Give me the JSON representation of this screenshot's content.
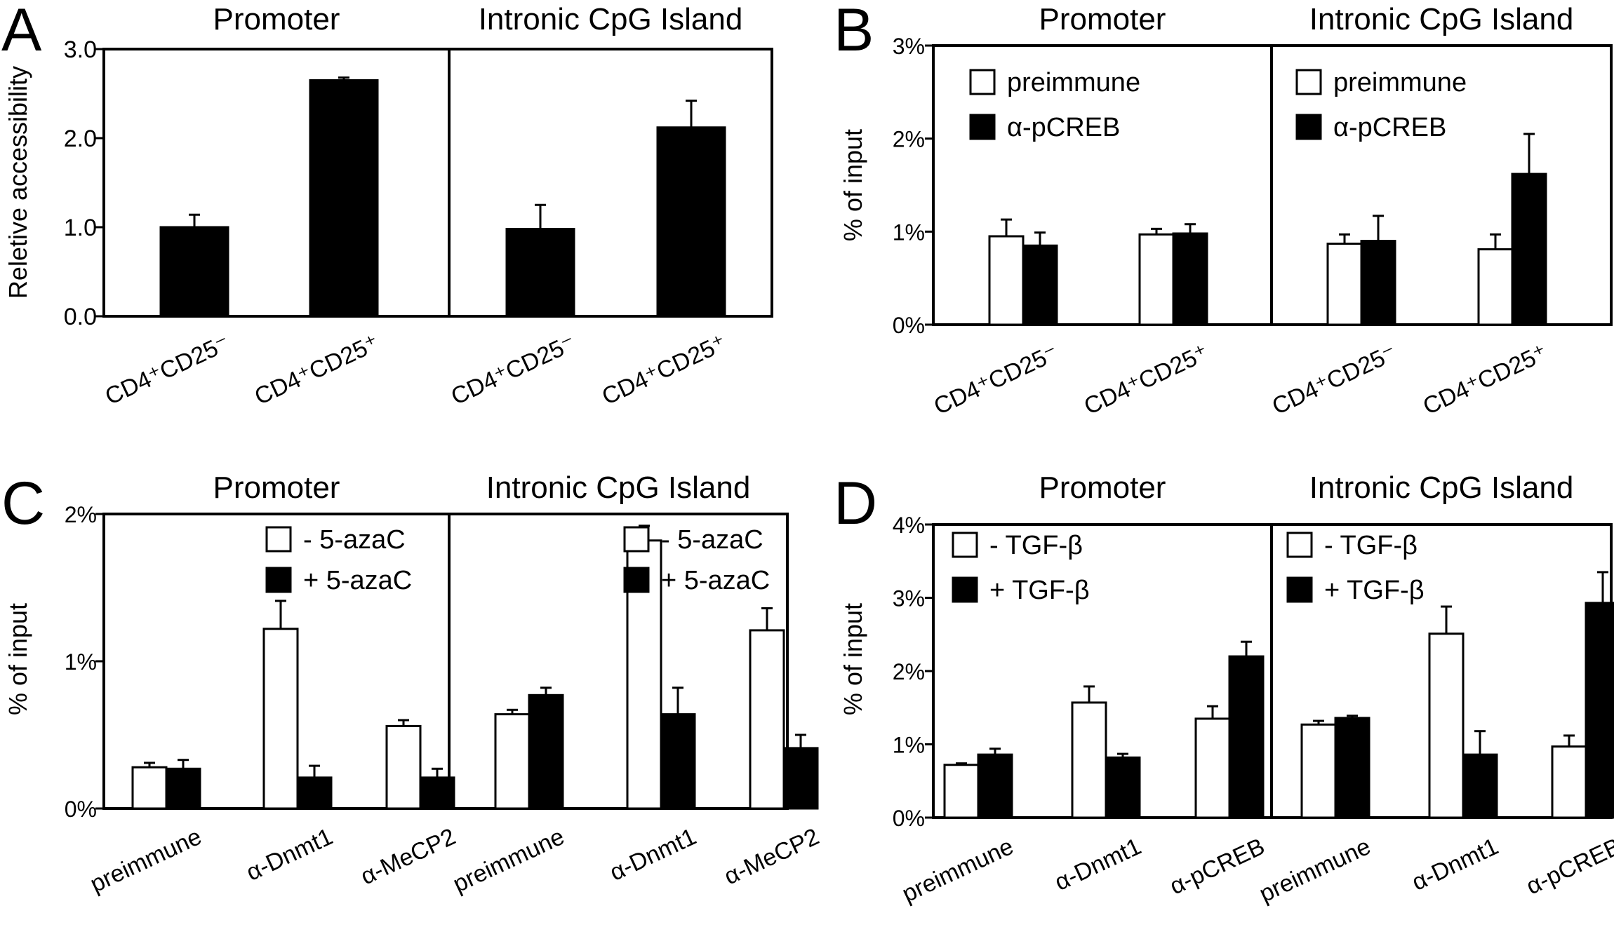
{
  "chart_data": [
    {
      "panel_letter": "A",
      "type": "bar",
      "ylabel": "Reletive accessibility",
      "ylim": [
        0,
        3
      ],
      "yticks": [
        "0.0",
        "1.0",
        "2.0",
        "3.0"
      ],
      "facets": [
        {
          "title": "Promoter",
          "categories": [
            "CD4⁺CD25⁻",
            "CD4⁺CD25⁺"
          ],
          "series": [
            {
              "fill": "#000000",
              "values": [
                1.0,
                2.65
              ],
              "errors": [
                0.14,
                0.03
              ]
            }
          ]
        },
        {
          "title": "Intronic CpG Island",
          "categories": [
            "CD4⁺CD25⁻",
            "CD4⁺CD25⁺"
          ],
          "series": [
            {
              "fill": "#000000",
              "values": [
                0.98,
                2.12
              ],
              "errors": [
                0.27,
                0.3
              ]
            }
          ]
        }
      ]
    },
    {
      "panel_letter": "B",
      "type": "bar",
      "ylabel": "% of input",
      "ylim": [
        0,
        3
      ],
      "yticks": [
        "0%",
        "1%",
        "2%",
        "3%"
      ],
      "facets": [
        {
          "title": "Promoter",
          "categories": [
            "CD4⁺CD25⁻",
            "CD4⁺CD25⁺"
          ],
          "series": [
            {
              "name": "preimmune",
              "fill": "#ffffff",
              "values": [
                0.95,
                0.97
              ],
              "errors": [
                0.18,
                0.06
              ]
            },
            {
              "name": "α-pCREB",
              "fill": "#000000",
              "values": [
                0.85,
                0.98
              ],
              "errors": [
                0.14,
                0.1
              ]
            }
          ]
        },
        {
          "title": "Intronic CpG Island",
          "categories": [
            "CD4⁺CD25⁻",
            "CD4⁺CD25⁺"
          ],
          "series": [
            {
              "name": "preimmune",
              "fill": "#ffffff",
              "values": [
                0.87,
                0.81
              ],
              "errors": [
                0.1,
                0.16
              ]
            },
            {
              "name": "α-pCREB",
              "fill": "#000000",
              "values": [
                0.9,
                1.62
              ],
              "errors": [
                0.27,
                0.43
              ]
            }
          ]
        }
      ]
    },
    {
      "panel_letter": "C",
      "type": "bar",
      "ylabel": "% of input",
      "ylim": [
        0,
        2
      ],
      "yticks": [
        "0%",
        "1%",
        "2%"
      ],
      "facets": [
        {
          "title": "Promoter",
          "categories": [
            "preimmune",
            "α-Dnmt1",
            "α-MeCP2"
          ],
          "series": [
            {
              "name": "- 5-azaC",
              "fill": "#ffffff",
              "values": [
                0.28,
                1.22,
                0.56
              ],
              "errors": [
                0.03,
                0.19,
                0.04
              ]
            },
            {
              "name": "+ 5-azaC",
              "fill": "#000000",
              "values": [
                0.27,
                0.21,
                0.21
              ],
              "errors": [
                0.06,
                0.08,
                0.06
              ]
            }
          ]
        },
        {
          "title": "Intronic CpG Island",
          "categories": [
            "preimmune",
            "α-Dnmt1",
            "α-MeCP2"
          ],
          "series": [
            {
              "name": "- 5-azaC",
              "fill": "#ffffff",
              "values": [
                0.64,
                1.82,
                1.21
              ],
              "errors": [
                0.03,
                0.1,
                0.15
              ]
            },
            {
              "name": "+ 5-azaC",
              "fill": "#000000",
              "values": [
                0.77,
                0.64,
                0.41
              ],
              "errors": [
                0.05,
                0.18,
                0.09
              ]
            }
          ]
        }
      ]
    },
    {
      "panel_letter": "D",
      "type": "bar",
      "ylabel": "% of input",
      "ylim": [
        0,
        4
      ],
      "yticks": [
        "0%",
        "1%",
        "2%",
        "3%",
        "4%"
      ],
      "facets": [
        {
          "title": "Promoter",
          "categories": [
            "preimmune",
            "α-Dnmt1",
            "α-pCREB"
          ],
          "series": [
            {
              "name": "- TGF-β",
              "fill": "#ffffff",
              "values": [
                0.72,
                1.57,
                1.35
              ],
              "errors": [
                0.02,
                0.22,
                0.17
              ]
            },
            {
              "name": "+ TGF-β",
              "fill": "#000000",
              "values": [
                0.86,
                0.82,
                2.2
              ],
              "errors": [
                0.08,
                0.05,
                0.2
              ]
            }
          ]
        },
        {
          "title": "Intronic CpG Island",
          "categories": [
            "preimmune",
            "α-Dnmt1",
            "α-pCREB"
          ],
          "series": [
            {
              "name": "- TGF-β",
              "fill": "#ffffff",
              "values": [
                1.27,
                2.51,
                0.97
              ],
              "errors": [
                0.05,
                0.37,
                0.15
              ]
            },
            {
              "name": "+ TGF-β",
              "fill": "#000000",
              "values": [
                1.36,
                0.86,
                2.93
              ],
              "errors": [
                0.03,
                0.32,
                0.42
              ]
            }
          ]
        }
      ]
    }
  ]
}
